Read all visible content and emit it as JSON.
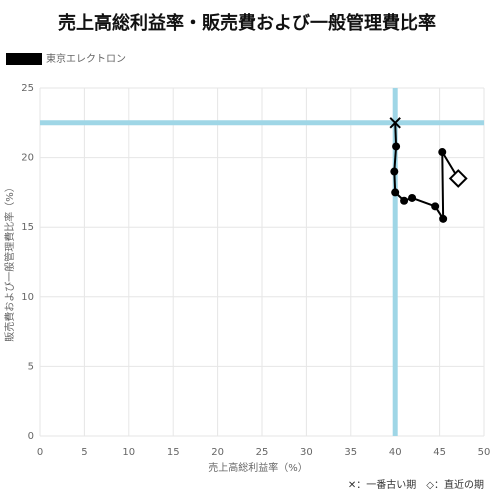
{
  "chart_data": {
    "type": "scatter",
    "title": "売上高総利益率・販売費および一般管理費比率",
    "x_label": "売上高総利益率（%）",
    "y_label": "販売費および一般管理費比率（%）",
    "note": "✕：一番古い期　◇：直近の期",
    "series": [
      {
        "name": "東京エレクトロン",
        "color": "#000000",
        "x": [
          40,
          40.1,
          39.9,
          40,
          41,
          41.9,
          44.5,
          45.4,
          45.3,
          47.1
        ],
        "values": [
          22.5,
          20.8,
          19.0,
          17.5,
          16.9,
          17.1,
          16.5,
          15.6,
          20.4,
          18.5
        ]
      }
    ],
    "reference_lines": {
      "x": 40,
      "y": 22.5,
      "color": "#9fd6e6"
    },
    "xlim": [
      0,
      50
    ],
    "xticks": [
      0,
      5,
      10,
      15,
      20,
      25,
      30,
      35,
      40,
      45,
      50
    ],
    "ylim": [
      0,
      25
    ],
    "yticks": [
      0,
      5,
      10,
      15,
      20,
      25
    ],
    "grid": true
  }
}
